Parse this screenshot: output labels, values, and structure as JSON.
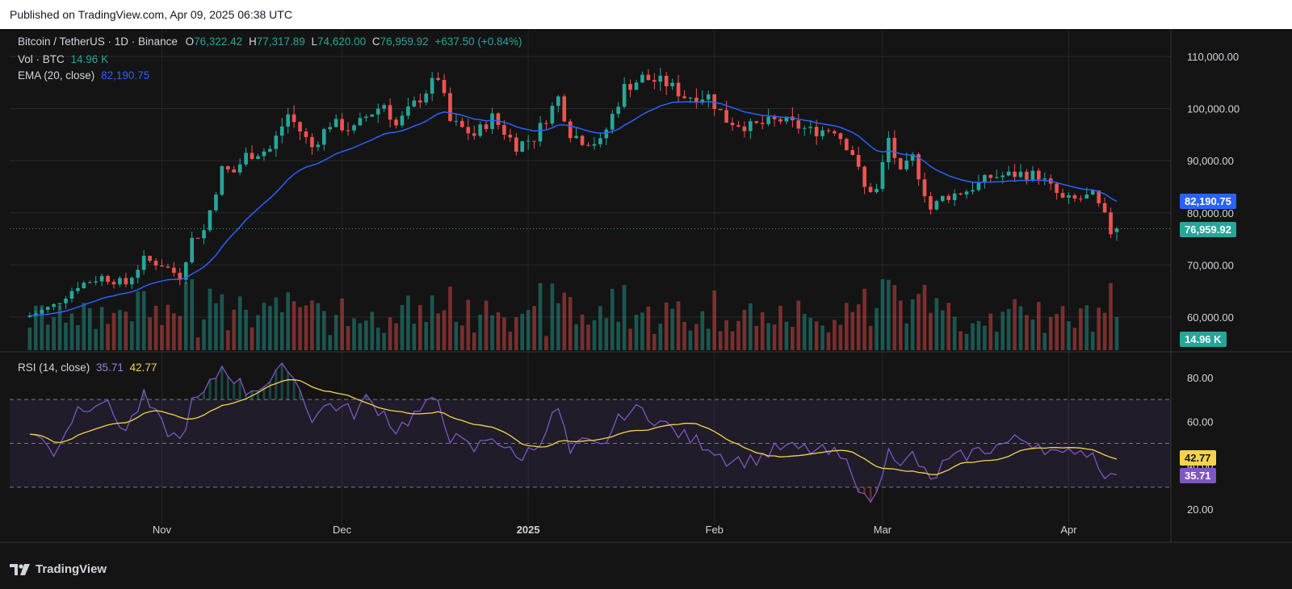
{
  "header": {
    "published": "Published on TradingView.com, Apr 09, 2025 06:38 UTC"
  },
  "legend": {
    "symbol": "Bitcoin / TetherUS · 1D · Binance",
    "o_label": "O",
    "o_value": "76,322.42",
    "h_label": "H",
    "h_value": "77,317.89",
    "l_label": "L",
    "l_value": "74,620.00",
    "c_label": "C",
    "c_value": "76,959.92",
    "change": "+637.50 (+0.84%)",
    "vol_label": "Vol · BTC",
    "vol_value": "14.96 K",
    "ema_label": "EMA (20, close)",
    "ema_value": "82,190.75",
    "rsi_label": "RSI (14, close)",
    "rsi_value": "35.71",
    "rsi_ma_value": "42.77"
  },
  "tags": {
    "ema": "82,190.75",
    "price": "76,959.92",
    "volume": "14.96 K",
    "rsi_ma": "42.77",
    "rsi": "35.71"
  },
  "footer": {
    "logo_text": "TradingView"
  },
  "colors": {
    "up": "#26a69a",
    "down": "#ef5350",
    "ema": "#2962ff",
    "rsi": "#7e57c2",
    "rsi_ma": "#f7d34c",
    "background": "#141414"
  },
  "chart_data": {
    "type": "candlestick",
    "symbol": "BTC/USDT",
    "interval": "1D",
    "x_tick_labels": [
      "Nov",
      "Dec",
      "2025",
      "Feb",
      "Mar",
      "Apr"
    ],
    "price_axis": {
      "ticks": [
        60000,
        70000,
        80000,
        90000,
        100000,
        110000
      ],
      "range": [
        55000,
        113500
      ]
    },
    "close_path": [
      [
        "2024-10-10",
        60300
      ],
      [
        "2024-10-14",
        62200
      ],
      [
        "2024-10-18",
        66100
      ],
      [
        "2024-10-22",
        67700
      ],
      [
        "2024-10-26",
        66400
      ],
      [
        "2024-10-29",
        71000
      ],
      [
        "2024-11-01",
        70100
      ],
      [
        "2024-11-04",
        67800
      ],
      [
        "2024-11-06",
        74900
      ],
      [
        "2024-11-08",
        76600
      ],
      [
        "2024-11-11",
        88300
      ],
      [
        "2024-11-13",
        87800
      ],
      [
        "2024-11-15",
        91000
      ],
      [
        "2024-11-19",
        92200
      ],
      [
        "2024-11-22",
        98900
      ],
      [
        "2024-11-26",
        92600
      ],
      [
        "2024-11-29",
        97200
      ],
      [
        "2024-12-03",
        96000
      ],
      [
        "2024-12-05",
        98500
      ],
      [
        "2024-12-08",
        100900
      ],
      [
        "2024-12-10",
        96700
      ],
      [
        "2024-12-13",
        100800
      ],
      [
        "2024-12-17",
        106100
      ],
      [
        "2024-12-19",
        97500
      ],
      [
        "2024-12-23",
        94900
      ],
      [
        "2024-12-26",
        98300
      ],
      [
        "2024-12-30",
        92900
      ],
      [
        "2025-01-02",
        94500
      ],
      [
        "2025-01-06",
        102100
      ],
      [
        "2025-01-08",
        95400
      ],
      [
        "2025-01-10",
        94000
      ],
      [
        "2025-01-13",
        93400
      ],
      [
        "2025-01-17",
        104000
      ],
      [
        "2025-01-20",
        105900
      ],
      [
        "2025-01-24",
        104800
      ],
      [
        "2025-01-27",
        102400
      ],
      [
        "2025-01-31",
        102400
      ],
      [
        "2025-02-03",
        97800
      ],
      [
        "2025-02-07",
        96500
      ],
      [
        "2025-02-12",
        97800
      ],
      [
        "2025-02-17",
        95700
      ],
      [
        "2025-02-21",
        96100
      ],
      [
        "2025-02-24",
        91500
      ],
      [
        "2025-02-26",
        84700
      ],
      [
        "2025-02-28",
        84300
      ],
      [
        "2025-03-02",
        94200
      ],
      [
        "2025-03-04",
        87300
      ],
      [
        "2025-03-06",
        90600
      ],
      [
        "2025-03-09",
        80700
      ],
      [
        "2025-03-11",
        82900
      ],
      [
        "2025-03-15",
        84300
      ],
      [
        "2025-03-19",
        86900
      ],
      [
        "2025-03-24",
        87500
      ],
      [
        "2025-03-27",
        87200
      ],
      [
        "2025-03-31",
        82500
      ],
      [
        "2025-04-02",
        82500
      ],
      [
        "2025-04-05",
        83300
      ],
      [
        "2025-04-07",
        79200
      ],
      [
        "2025-04-08",
        76300
      ],
      [
        "2025-04-09",
        76959.92
      ]
    ],
    "last_candle": {
      "open": 76322.42,
      "high": 77317.89,
      "low": 74620.0,
      "close": 76959.92
    },
    "ema20_last": 82190.75,
    "volume_last_btc_k": 14.96,
    "rsi": {
      "period": 14,
      "axis_ticks": [
        20,
        40,
        60,
        80
      ],
      "band_levels": [
        30,
        50,
        70
      ],
      "rsi_last": 35.71,
      "rsi_ma_last": 42.77,
      "rsi_path": [
        [
          "2024-10-10",
          56
        ],
        [
          "2024-10-14",
          46
        ],
        [
          "2024-10-18",
          66
        ],
        [
          "2024-10-22",
          70
        ],
        [
          "2024-10-26",
          56
        ],
        [
          "2024-10-29",
          71
        ],
        [
          "2024-11-01",
          58
        ],
        [
          "2024-11-04",
          51
        ],
        [
          "2024-11-06",
          68
        ],
        [
          "2024-11-08",
          72
        ],
        [
          "2024-11-11",
          85
        ],
        [
          "2024-11-13",
          80
        ],
        [
          "2024-11-15",
          74
        ],
        [
          "2024-11-19",
          78
        ],
        [
          "2024-11-22",
          86
        ],
        [
          "2024-11-26",
          62
        ],
        [
          "2024-11-29",
          68
        ],
        [
          "2024-12-03",
          64
        ],
        [
          "2024-12-05",
          70
        ],
        [
          "2024-12-08",
          64
        ],
        [
          "2024-12-10",
          56
        ],
        [
          "2024-12-13",
          63
        ],
        [
          "2024-12-17",
          70
        ],
        [
          "2024-12-19",
          53
        ],
        [
          "2024-12-23",
          47
        ],
        [
          "2024-12-26",
          54
        ],
        [
          "2024-12-30",
          43
        ],
        [
          "2025-01-02",
          48
        ],
        [
          "2025-01-06",
          66
        ],
        [
          "2025-01-08",
          45
        ],
        [
          "2025-01-10",
          50
        ],
        [
          "2025-01-13",
          48
        ],
        [
          "2025-01-17",
          64
        ],
        [
          "2025-01-20",
          65
        ],
        [
          "2025-01-24",
          58
        ],
        [
          "2025-01-27",
          53
        ],
        [
          "2025-01-31",
          49
        ],
        [
          "2025-02-03",
          43
        ],
        [
          "2025-02-07",
          42
        ],
        [
          "2025-02-12",
          48
        ],
        [
          "2025-02-17",
          47
        ],
        [
          "2025-02-21",
          45
        ],
        [
          "2025-02-24",
          38
        ],
        [
          "2025-02-26",
          24
        ],
        [
          "2025-02-28",
          26
        ],
        [
          "2025-03-02",
          51
        ],
        [
          "2025-03-04",
          38
        ],
        [
          "2025-03-06",
          45
        ],
        [
          "2025-03-09",
          32
        ],
        [
          "2025-03-11",
          40
        ],
        [
          "2025-03-15",
          45
        ],
        [
          "2025-03-19",
          48
        ],
        [
          "2025-03-24",
          52
        ],
        [
          "2025-03-27",
          50
        ],
        [
          "2025-03-31",
          43
        ],
        [
          "2025-04-02",
          48
        ],
        [
          "2025-04-05",
          45
        ],
        [
          "2025-04-07",
          37
        ],
        [
          "2025-04-08",
          34
        ],
        [
          "2025-04-09",
          35.71
        ]
      ]
    }
  }
}
